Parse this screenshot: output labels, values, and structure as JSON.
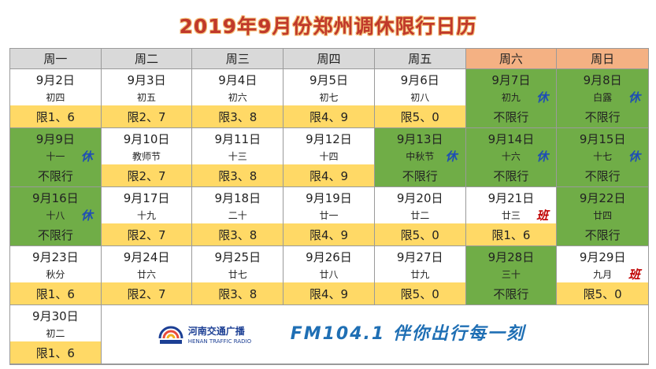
{
  "title": "2019年9月份郑州调休限行日历",
  "weekdays": [
    "周一",
    "周二",
    "周三",
    "周四",
    "周五",
    "周六",
    "周日"
  ],
  "weeks": [
    [
      {
        "date": "9月2日",
        "lunar": "初四",
        "rule": "限1、6",
        "rest": false,
        "badge": ""
      },
      {
        "date": "9月3日",
        "lunar": "初五",
        "rule": "限2、7",
        "rest": false,
        "badge": ""
      },
      {
        "date": "9月4日",
        "lunar": "初六",
        "rule": "限3、8",
        "rest": false,
        "badge": ""
      },
      {
        "date": "9月5日",
        "lunar": "初七",
        "rule": "限4、9",
        "rest": false,
        "badge": ""
      },
      {
        "date": "9月6日",
        "lunar": "初八",
        "rule": "限5、0",
        "rest": false,
        "badge": ""
      },
      {
        "date": "9月7日",
        "lunar": "初九",
        "rule": "不限行",
        "rest": true,
        "badge": "休"
      },
      {
        "date": "9月8日",
        "lunar": "白露",
        "rule": "不限行",
        "rest": true,
        "badge": "休"
      }
    ],
    [
      {
        "date": "9月9日",
        "lunar": "十一",
        "rule": "不限行",
        "rest": true,
        "badge": "休"
      },
      {
        "date": "9月10日",
        "lunar": "教师节",
        "rule": "限2、7",
        "rest": false,
        "badge": ""
      },
      {
        "date": "9月11日",
        "lunar": "十三",
        "rule": "限3、8",
        "rest": false,
        "badge": ""
      },
      {
        "date": "9月12日",
        "lunar": "十四",
        "rule": "限4、9",
        "rest": false,
        "badge": ""
      },
      {
        "date": "9月13日",
        "lunar": "中秋节",
        "rule": "不限行",
        "rest": true,
        "badge": "休"
      },
      {
        "date": "9月14日",
        "lunar": "十六",
        "rule": "不限行",
        "rest": true,
        "badge": "休"
      },
      {
        "date": "9月15日",
        "lunar": "十七",
        "rule": "不限行",
        "rest": true,
        "badge": "休"
      }
    ],
    [
      {
        "date": "9月16日",
        "lunar": "十八",
        "rule": "不限行",
        "rest": true,
        "badge": "休"
      },
      {
        "date": "9月17日",
        "lunar": "十九",
        "rule": "限2、7",
        "rest": false,
        "badge": ""
      },
      {
        "date": "9月18日",
        "lunar": "二十",
        "rule": "限3、8",
        "rest": false,
        "badge": ""
      },
      {
        "date": "9月19日",
        "lunar": "廿一",
        "rule": "限4、9",
        "rest": false,
        "badge": ""
      },
      {
        "date": "9月20日",
        "lunar": "廿二",
        "rule": "限5、0",
        "rest": false,
        "badge": ""
      },
      {
        "date": "9月21日",
        "lunar": "廿三",
        "rule": "限1、6",
        "rest": false,
        "badge": "班"
      },
      {
        "date": "9月22日",
        "lunar": "廿四",
        "rule": "不限行",
        "rest": true,
        "badge": ""
      }
    ],
    [
      {
        "date": "9月23日",
        "lunar": "秋分",
        "rule": "限1、6",
        "rest": false,
        "badge": ""
      },
      {
        "date": "9月24日",
        "lunar": "廿六",
        "rule": "限2、7",
        "rest": false,
        "badge": ""
      },
      {
        "date": "9月25日",
        "lunar": "廿七",
        "rule": "限3、8",
        "rest": false,
        "badge": ""
      },
      {
        "date": "9月26日",
        "lunar": "廿八",
        "rule": "限4、9",
        "rest": false,
        "badge": ""
      },
      {
        "date": "9月27日",
        "lunar": "廿九",
        "rule": "限5、0",
        "rest": false,
        "badge": ""
      },
      {
        "date": "9月28日",
        "lunar": "三十",
        "rule": "不限行",
        "rest": true,
        "badge": ""
      },
      {
        "date": "9月29日",
        "lunar": "九月",
        "rule": "限5、0",
        "rest": false,
        "badge": "班"
      }
    ],
    [
      {
        "date": "9月30日",
        "lunar": "初二",
        "rule": "限1、6",
        "rest": false,
        "badge": ""
      }
    ]
  ],
  "footer": {
    "logo_cn": "河南交通广播",
    "logo_en": "HENAN TRAFFIC RADIO",
    "slogan": "FM104.1 伴你出行每一刻"
  },
  "colors": {
    "rest_green": "#70ad47",
    "restricted_yellow": "#ffd966",
    "header_gray": "#d9d9d9",
    "weekend_header": "#f4b183",
    "rest_badge": "#1f4eb4",
    "work_badge": "#c00000"
  }
}
